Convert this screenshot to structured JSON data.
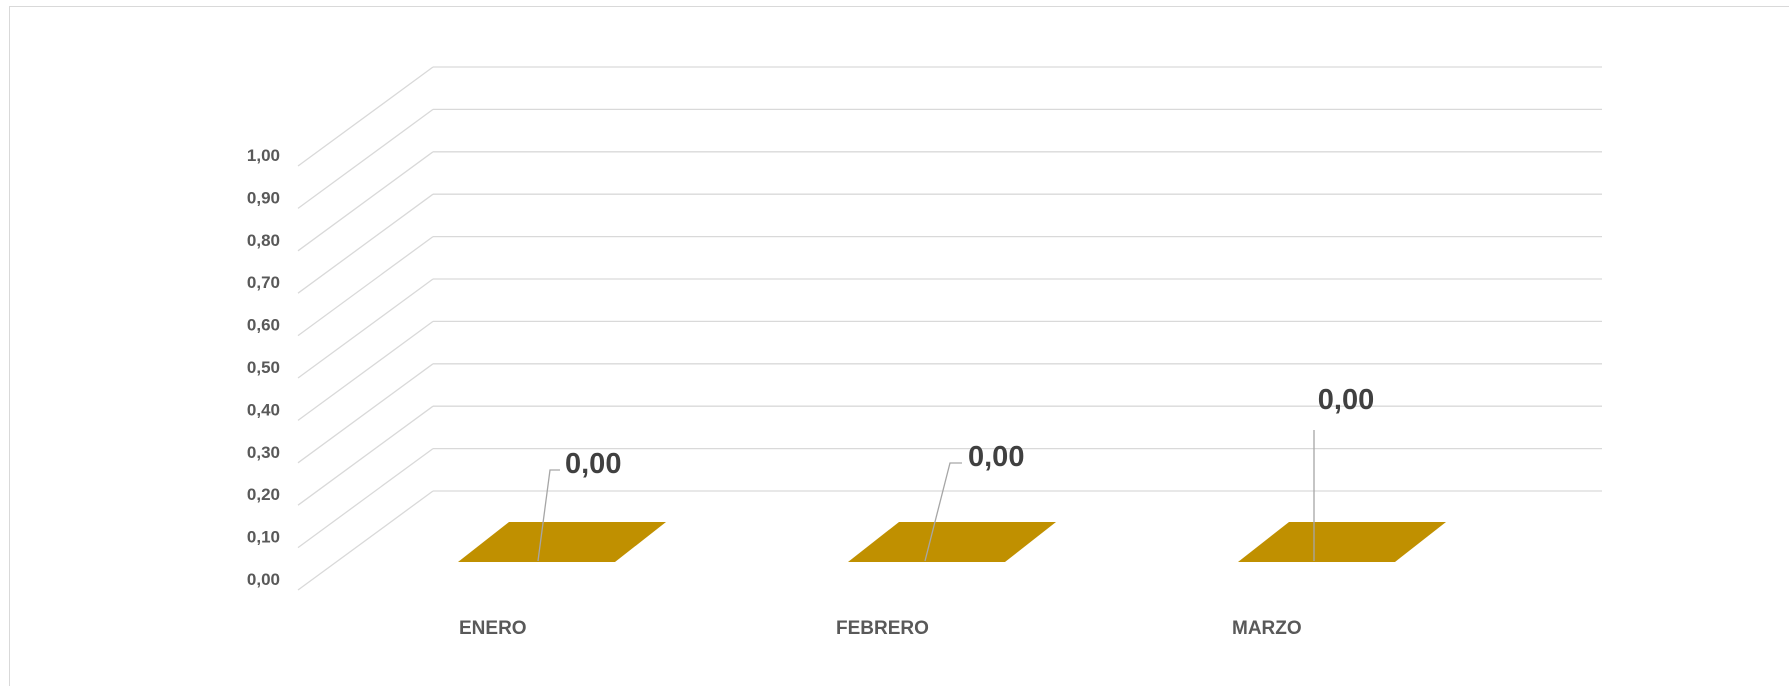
{
  "chart_data": {
    "type": "bar",
    "title": "",
    "xlabel": "",
    "ylabel": "",
    "categories": [
      "ENERO",
      "FEBRERO",
      "MARZO"
    ],
    "series": [
      {
        "values": [
          0.0,
          0.0,
          0.0
        ],
        "data_labels": [
          "0,00",
          "0,00",
          "0,00"
        ],
        "color": "#C09000"
      }
    ],
    "ylim": [
      0,
      1
    ],
    "yticks": [
      0,
      0.1,
      0.2,
      0.3,
      0.4,
      0.5,
      0.6,
      0.7,
      0.8,
      0.9,
      1.0
    ],
    "ytick_labels": [
      "0,00",
      "0,10",
      "0,20",
      "0,30",
      "0,40",
      "0,50",
      "0,60",
      "0,70",
      "0,80",
      "0,90",
      "1,00"
    ],
    "grid": true,
    "legend": "none",
    "style": "3d-column",
    "gridline_color": "#d9d9d9",
    "label_color": "#595959",
    "data_label_color": "#404040"
  }
}
